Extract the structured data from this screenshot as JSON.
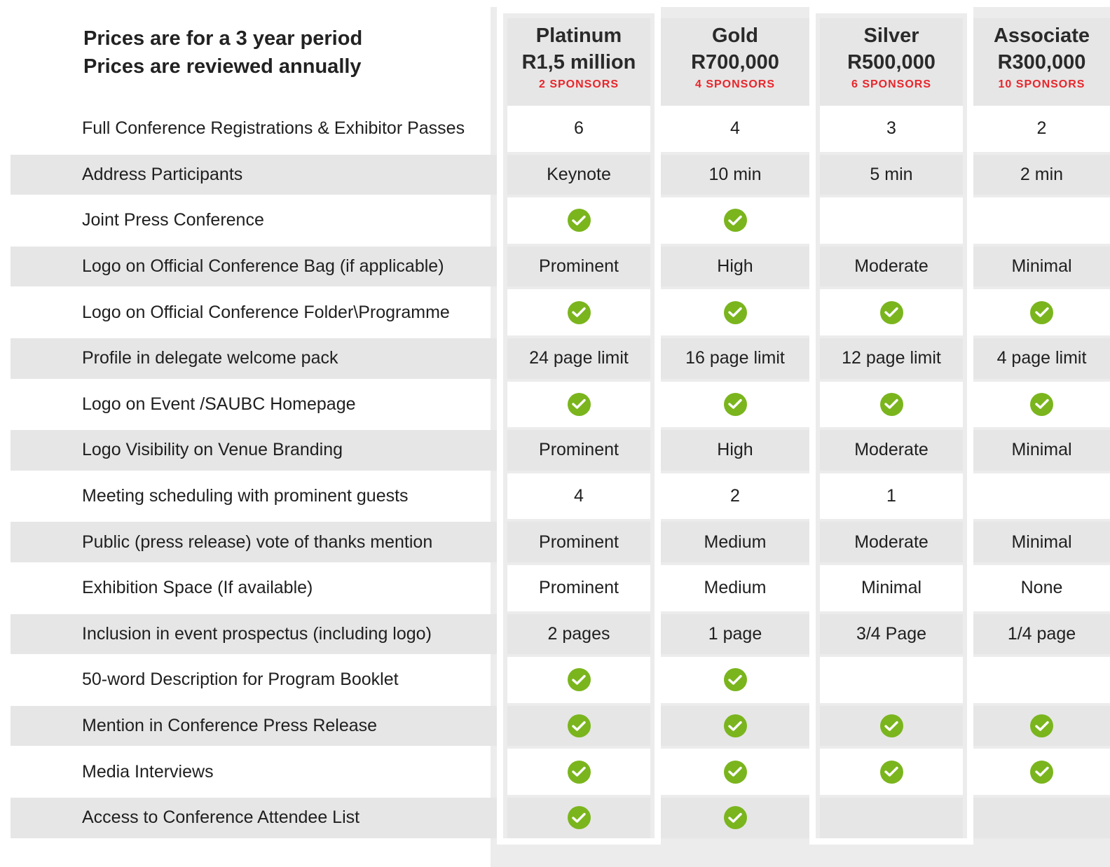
{
  "intro": {
    "line1": "Prices are for a 3 year period",
    "line2": "Prices are reviewed annually"
  },
  "tiers": [
    {
      "name": "Platinum",
      "price": "R1,5 million",
      "sponsors": "2 SPONSORS"
    },
    {
      "name": "Gold",
      "price": "R700,000",
      "sponsors": "4 SPONSORS"
    },
    {
      "name": "Silver",
      "price": "R500,000",
      "sponsors": "6 SPONSORS"
    },
    {
      "name": "Associate",
      "price": "R300,000",
      "sponsors": "10 SPONSORS"
    }
  ],
  "rows": [
    {
      "label": "Full Conference Registrations & Exhibitor Passes",
      "values": [
        "6",
        "4",
        "3",
        "2"
      ]
    },
    {
      "label": "Address Participants",
      "values": [
        "Keynote",
        "10 min",
        "5 min",
        "2 min"
      ]
    },
    {
      "label": "Joint Press Conference",
      "values": [
        "check",
        "check",
        "",
        ""
      ]
    },
    {
      "label": "Logo on Official Conference Bag (if applicable)",
      "values": [
        "Prominent",
        "High",
        "Moderate",
        "Minimal"
      ]
    },
    {
      "label": "Logo on Official Conference Folder\\Programme",
      "values": [
        "check",
        "check",
        "check",
        "check"
      ]
    },
    {
      "label": "Profile in delegate welcome pack",
      "values": [
        "24 page limit",
        "16 page limit",
        "12 page limit",
        "4 page limit"
      ]
    },
    {
      "label": "Logo on Event /SAUBC Homepage",
      "values": [
        "check",
        "check",
        "check",
        "check"
      ]
    },
    {
      "label": "Logo Visibility on Venue Branding",
      "values": [
        "Prominent",
        "High",
        "Moderate",
        "Minimal"
      ]
    },
    {
      "label": "Meeting scheduling with prominent guests",
      "values": [
        "4",
        "2",
        "1",
        ""
      ]
    },
    {
      "label": "Public (press release) vote of thanks mention",
      "values": [
        "Prominent",
        "Medium",
        "Moderate",
        "Minimal"
      ]
    },
    {
      "label": "Exhibition Space (If available)",
      "values": [
        "Prominent",
        "Medium",
        "Minimal",
        "None"
      ]
    },
    {
      "label": "Inclusion in event prospectus (including logo)",
      "values": [
        "2 pages",
        "1 page",
        "3/4 Page",
        "1/4 page"
      ]
    },
    {
      "label": "50-word Description for Program Booklet",
      "values": [
        "check",
        "check",
        "",
        ""
      ]
    },
    {
      "label": "Mention in Conference Press Release",
      "values": [
        "check",
        "check",
        "check",
        "check"
      ]
    },
    {
      "label": "Media Interviews",
      "values": [
        "check",
        "check",
        "check",
        "check"
      ]
    },
    {
      "label": "Access to Conference Attendee List",
      "values": [
        "check",
        "check",
        "",
        ""
      ]
    }
  ],
  "icons": {
    "check": "check-circle-icon",
    "check_color": "#7ab51d"
  },
  "colors": {
    "sponsor_count": "#e8262b",
    "shaded_row": "#e6e6e6"
  }
}
